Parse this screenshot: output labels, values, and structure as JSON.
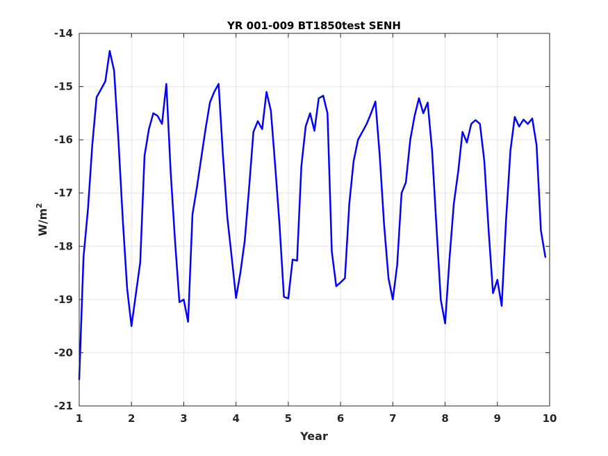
{
  "chart_data": {
    "type": "line",
    "title": "YR 001-009 BT1850test SENH",
    "xlabel": "Year",
    "ylabel": "W/m",
    "ylabel_superscript": "2",
    "xlim": [
      1,
      10
    ],
    "ylim": [
      -21,
      -14
    ],
    "xticks": [
      1,
      2,
      3,
      4,
      5,
      6,
      7,
      8,
      9,
      10
    ],
    "yticks": [
      -21,
      -20,
      -19,
      -18,
      -17,
      -16,
      -15,
      -14
    ],
    "grid": true,
    "line_color": "#0000ff",
    "series": [
      {
        "x": [
          1.0,
          1.083,
          1.167,
          1.25,
          1.333,
          1.417,
          1.5,
          1.583,
          1.667,
          1.75,
          1.833,
          1.917,
          2.0,
          2.083,
          2.167,
          2.25,
          2.333,
          2.417,
          2.5,
          2.583,
          2.667,
          2.75,
          2.833,
          2.917,
          3.0,
          3.083,
          3.167,
          3.25,
          3.333,
          3.417,
          3.5,
          3.583,
          3.667,
          3.75,
          3.833,
          3.917,
          4.0,
          4.083,
          4.167,
          4.25,
          4.333,
          4.417,
          4.5,
          4.583,
          4.667,
          4.75,
          4.833,
          4.917,
          5.0,
          5.083,
          5.167,
          5.25,
          5.333,
          5.417,
          5.5,
          5.583,
          5.667,
          5.75,
          5.833,
          5.917,
          6.0,
          6.083,
          6.167,
          6.25,
          6.333,
          6.417,
          6.5,
          6.583,
          6.667,
          6.75,
          6.833,
          6.917,
          7.0,
          7.083,
          7.167,
          7.25,
          7.333,
          7.417,
          7.5,
          7.583,
          7.667,
          7.75,
          7.833,
          7.917,
          8.0,
          8.083,
          8.167,
          8.25,
          8.333,
          8.417,
          8.5,
          8.583,
          8.667,
          8.75,
          8.833,
          8.917,
          9.0,
          9.083,
          9.167,
          9.25,
          9.333,
          9.417,
          9.5,
          9.583,
          9.667,
          9.75,
          9.833,
          9.917
        ],
        "values": [
          -20.5,
          -18.2,
          -17.3,
          -16.1,
          -15.2,
          -15.05,
          -14.9,
          -14.33,
          -14.7,
          -16.0,
          -17.5,
          -18.8,
          -19.5,
          -18.9,
          -18.3,
          -16.3,
          -15.8,
          -15.5,
          -15.55,
          -15.7,
          -14.95,
          -16.6,
          -17.9,
          -19.05,
          -19.0,
          -19.42,
          -17.4,
          -16.9,
          -16.35,
          -15.8,
          -15.3,
          -15.1,
          -14.95,
          -16.3,
          -17.45,
          -18.2,
          -18.97,
          -18.5,
          -17.9,
          -16.9,
          -15.85,
          -15.65,
          -15.8,
          -15.1,
          -15.45,
          -16.5,
          -17.6,
          -18.95,
          -18.98,
          -18.25,
          -18.27,
          -16.5,
          -15.75,
          -15.5,
          -15.83,
          -15.22,
          -15.17,
          -15.5,
          -18.1,
          -18.75,
          -18.68,
          -18.6,
          -17.2,
          -16.4,
          -16.0,
          -15.85,
          -15.7,
          -15.5,
          -15.28,
          -16.3,
          -17.6,
          -18.6,
          -19.0,
          -18.35,
          -17.0,
          -16.8,
          -16.0,
          -15.55,
          -15.22,
          -15.5,
          -15.3,
          -16.2,
          -17.6,
          -19.0,
          -19.45,
          -18.25,
          -17.2,
          -16.6,
          -15.85,
          -16.05,
          -15.7,
          -15.63,
          -15.7,
          -16.4,
          -17.7,
          -18.88,
          -18.63,
          -19.12,
          -17.5,
          -16.2,
          -15.57,
          -15.75,
          -15.62,
          -15.7,
          -15.6,
          -16.1,
          -17.7,
          -18.2
        ]
      }
    ]
  }
}
